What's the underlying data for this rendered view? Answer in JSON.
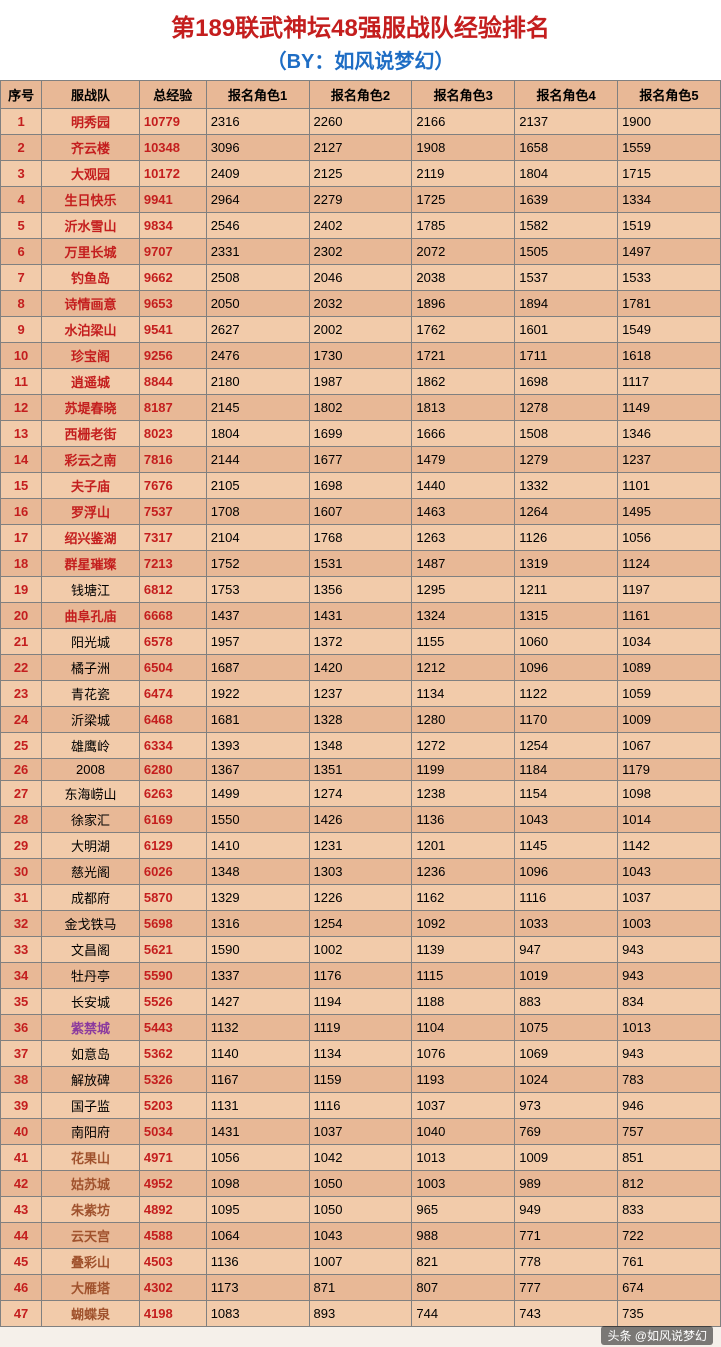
{
  "title": "第189联武神坛48强服战队经验排名",
  "subtitle": "（BY：如风说梦幻）",
  "watermark": "头条 @如风说梦幻",
  "headers": [
    "序号",
    "服战队",
    "总经验",
    "报名角色1",
    "报名角色2",
    "报名角色3",
    "报名角色4",
    "报名角色5"
  ],
  "colors": {
    "title": "#c41e1e",
    "subtitle": "#1e6dc4",
    "row_odd": "#f2cbaa",
    "row_even": "#e8b896",
    "border": "#808080",
    "rank_text": "#c41e1e",
    "total_text": "#c41e1e"
  },
  "rows": [
    {
      "rank": 1,
      "team": "明秀园",
      "team_style": "red",
      "total": 10779,
      "v": [
        2316,
        2260,
        2166,
        2137,
        1900
      ]
    },
    {
      "rank": 2,
      "team": "齐云楼",
      "team_style": "red",
      "total": 10348,
      "v": [
        3096,
        2127,
        1908,
        1658,
        1559
      ]
    },
    {
      "rank": 3,
      "team": "大观园",
      "team_style": "red",
      "total": 10172,
      "v": [
        2409,
        2125,
        2119,
        1804,
        1715
      ]
    },
    {
      "rank": 4,
      "team": "生日快乐",
      "team_style": "red",
      "total": 9941,
      "v": [
        2964,
        2279,
        1725,
        1639,
        1334
      ]
    },
    {
      "rank": 5,
      "team": "沂水雪山",
      "team_style": "red",
      "total": 9834,
      "v": [
        2546,
        2402,
        1785,
        1582,
        1519
      ]
    },
    {
      "rank": 6,
      "team": "万里长城",
      "team_style": "red",
      "total": 9707,
      "v": [
        2331,
        2302,
        2072,
        1505,
        1497
      ]
    },
    {
      "rank": 7,
      "team": "钓鱼岛",
      "team_style": "red",
      "total": 9662,
      "v": [
        2508,
        2046,
        2038,
        1537,
        1533
      ]
    },
    {
      "rank": 8,
      "team": "诗情画意",
      "team_style": "red",
      "total": 9653,
      "v": [
        2050,
        2032,
        1896,
        1894,
        1781
      ]
    },
    {
      "rank": 9,
      "team": "水泊梁山",
      "team_style": "red",
      "total": 9541,
      "v": [
        2627,
        2002,
        1762,
        1601,
        1549
      ]
    },
    {
      "rank": 10,
      "team": "珍宝阁",
      "team_style": "red",
      "total": 9256,
      "v": [
        2476,
        1730,
        1721,
        1711,
        1618
      ]
    },
    {
      "rank": 11,
      "team": "逍遥城",
      "team_style": "red",
      "total": 8844,
      "v": [
        2180,
        1987,
        1862,
        1698,
        1117
      ]
    },
    {
      "rank": 12,
      "team": "苏堤春晓",
      "team_style": "red",
      "total": 8187,
      "v": [
        2145,
        1802,
        1813,
        1278,
        1149
      ]
    },
    {
      "rank": 13,
      "team": "西栅老街",
      "team_style": "red",
      "total": 8023,
      "v": [
        1804,
        1699,
        1666,
        1508,
        1346
      ]
    },
    {
      "rank": 14,
      "team": "彩云之南",
      "team_style": "red",
      "total": 7816,
      "v": [
        2144,
        1677,
        1479,
        1279,
        1237
      ]
    },
    {
      "rank": 15,
      "team": "夫子庙",
      "team_style": "red",
      "total": 7676,
      "v": [
        2105,
        1698,
        1440,
        1332,
        1101
      ]
    },
    {
      "rank": 16,
      "team": "罗浮山",
      "team_style": "red",
      "total": 7537,
      "v": [
        1708,
        1607,
        1463,
        1264,
        1495
      ]
    },
    {
      "rank": 17,
      "team": "绍兴鉴湖",
      "team_style": "red",
      "total": 7317,
      "v": [
        2104,
        1768,
        1263,
        1126,
        1056
      ]
    },
    {
      "rank": 18,
      "team": "群星璀璨",
      "team_style": "red",
      "total": 7213,
      "v": [
        1752,
        1531,
        1487,
        1319,
        1124
      ]
    },
    {
      "rank": 19,
      "team": "钱塘江",
      "team_style": "black",
      "total": 6812,
      "v": [
        1753,
        1356,
        1295,
        1211,
        1197
      ]
    },
    {
      "rank": 20,
      "team": "曲阜孔庙",
      "team_style": "red",
      "total": 6668,
      "v": [
        1437,
        1431,
        1324,
        1315,
        1161
      ]
    },
    {
      "rank": 21,
      "team": "阳光城",
      "team_style": "black",
      "total": 6578,
      "v": [
        1957,
        1372,
        1155,
        1060,
        1034
      ]
    },
    {
      "rank": 22,
      "team": "橘子洲",
      "team_style": "black",
      "total": 6504,
      "v": [
        1687,
        1420,
        1212,
        1096,
        1089
      ]
    },
    {
      "rank": 23,
      "team": "青花瓷",
      "team_style": "black",
      "total": 6474,
      "v": [
        1922,
        1237,
        1134,
        1122,
        1059
      ]
    },
    {
      "rank": 24,
      "team": "沂梁城",
      "team_style": "black",
      "total": 6468,
      "v": [
        1681,
        1328,
        1280,
        1170,
        1009
      ]
    },
    {
      "rank": 25,
      "team": "雄鹰岭",
      "team_style": "black",
      "total": 6334,
      "v": [
        1393,
        1348,
        1272,
        1254,
        1067
      ]
    },
    {
      "rank": 26,
      "team": "2008",
      "team_style": "black",
      "total": 6280,
      "v": [
        1367,
        1351,
        1199,
        1184,
        1179
      ]
    },
    {
      "rank": 27,
      "team": "东海崂山",
      "team_style": "black",
      "total": 6263,
      "v": [
        1499,
        1274,
        1238,
        1154,
        1098
      ]
    },
    {
      "rank": 28,
      "team": "徐家汇",
      "team_style": "black",
      "total": 6169,
      "v": [
        1550,
        1426,
        1136,
        1043,
        1014
      ]
    },
    {
      "rank": 29,
      "team": "大明湖",
      "team_style": "black",
      "total": 6129,
      "v": [
        1410,
        1231,
        1201,
        1145,
        1142
      ]
    },
    {
      "rank": 30,
      "team": "慈光阁",
      "team_style": "black",
      "total": 6026,
      "v": [
        1348,
        1303,
        1236,
        1096,
        1043
      ]
    },
    {
      "rank": 31,
      "team": "成都府",
      "team_style": "black",
      "total": 5870,
      "v": [
        1329,
        1226,
        1162,
        1116,
        1037
      ]
    },
    {
      "rank": 32,
      "team": "金戈铁马",
      "team_style": "black",
      "total": 5698,
      "v": [
        1316,
        1254,
        1092,
        1033,
        1003
      ]
    },
    {
      "rank": 33,
      "team": "文昌阁",
      "team_style": "black",
      "total": 5621,
      "v": [
        1590,
        1002,
        1139,
        947,
        943
      ]
    },
    {
      "rank": 34,
      "team": "牡丹亭",
      "team_style": "black",
      "total": 5590,
      "v": [
        1337,
        1176,
        1115,
        1019,
        943
      ]
    },
    {
      "rank": 35,
      "team": "长安城",
      "team_style": "black",
      "total": 5526,
      "v": [
        1427,
        1194,
        1188,
        883,
        834
      ]
    },
    {
      "rank": 36,
      "team": "紫禁城",
      "team_style": "purple",
      "total": 5443,
      "v": [
        1132,
        1119,
        1104,
        1075,
        1013
      ]
    },
    {
      "rank": 37,
      "team": "如意岛",
      "team_style": "black",
      "total": 5362,
      "v": [
        1140,
        1134,
        1076,
        1069,
        943
      ]
    },
    {
      "rank": 38,
      "team": "解放碑",
      "team_style": "black",
      "total": 5326,
      "v": [
        1167,
        1159,
        1193,
        1024,
        783
      ]
    },
    {
      "rank": 39,
      "team": "国子监",
      "team_style": "black",
      "total": 5203,
      "v": [
        1131,
        1116,
        1037,
        973,
        946
      ]
    },
    {
      "rank": 40,
      "team": "南阳府",
      "team_style": "black",
      "total": 5034,
      "v": [
        1431,
        1037,
        1040,
        769,
        757
      ]
    },
    {
      "rank": 41,
      "team": "花果山",
      "team_style": "brown",
      "total": 4971,
      "v": [
        1056,
        1042,
        1013,
        1009,
        851
      ]
    },
    {
      "rank": 42,
      "team": "姑苏城",
      "team_style": "brown",
      "total": 4952,
      "v": [
        1098,
        1050,
        1003,
        989,
        812
      ]
    },
    {
      "rank": 43,
      "team": "朱紫坊",
      "team_style": "brown",
      "total": 4892,
      "v": [
        1095,
        1050,
        965,
        949,
        833
      ]
    },
    {
      "rank": 44,
      "team": "云天宫",
      "team_style": "brown",
      "total": 4588,
      "v": [
        1064,
        1043,
        988,
        771,
        722
      ]
    },
    {
      "rank": 45,
      "team": "叠彩山",
      "team_style": "brown",
      "total": 4503,
      "v": [
        1136,
        1007,
        821,
        778,
        761
      ]
    },
    {
      "rank": 46,
      "team": "大雁塔",
      "team_style": "brown",
      "total": 4302,
      "v": [
        1173,
        871,
        807,
        777,
        674
      ]
    },
    {
      "rank": 47,
      "team": "蝴蝶泉",
      "team_style": "brown",
      "total": 4198,
      "v": [
        1083,
        893,
        744,
        743,
        735
      ]
    }
  ]
}
